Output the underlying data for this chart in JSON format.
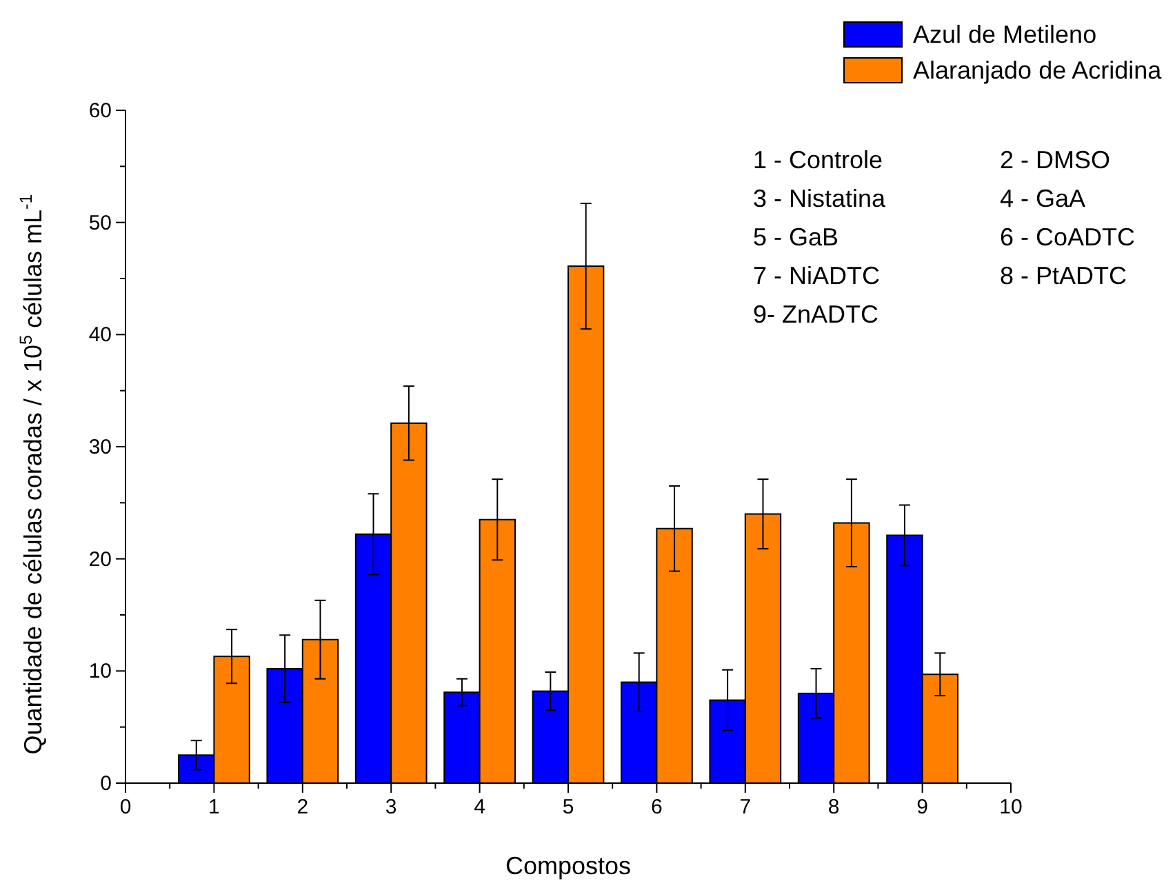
{
  "chart_data": {
    "type": "bar",
    "xlabel": "Compostos",
    "ylabel": "Quantidade de células coradas / x 10$^{5}$ células mL$^{-1}$",
    "x": [
      1,
      2,
      3,
      4,
      5,
      6,
      7,
      8,
      9
    ],
    "series": [
      {
        "name": "Azul de Metileno",
        "color": "#0000ff",
        "values": [
          2.5,
          10.2,
          22.2,
          8.1,
          8.2,
          9.0,
          7.4,
          8.0,
          22.1
        ],
        "errors": [
          1.3,
          3.0,
          3.6,
          1.2,
          1.7,
          2.6,
          2.7,
          2.2,
          2.7
        ]
      },
      {
        "name": "Alaranjado de Acridina",
        "color": "#ff8000",
        "values": [
          11.3,
          12.8,
          32.1,
          23.5,
          46.1,
          22.7,
          24.0,
          23.2,
          9.7
        ],
        "errors": [
          2.4,
          3.5,
          3.3,
          3.6,
          5.6,
          3.8,
          3.1,
          3.9,
          1.9
        ]
      }
    ],
    "xlim": [
      0,
      10
    ],
    "xticks": [
      0,
      {
        "value": 0.5,
        "label": null
      },
      1,
      {
        "value": 1.5,
        "label": null
      },
      2,
      {
        "value": 2.5,
        "label": null
      },
      3,
      {
        "value": 3.5,
        "label": null
      },
      4,
      {
        "value": 4.5,
        "label": null
      },
      5,
      {
        "value": 5.5,
        "label": null
      },
      6,
      {
        "value": 6.5,
        "label": null
      },
      7,
      {
        "value": 7.5,
        "label": null
      },
      8,
      {
        "value": 8.5,
        "label": null
      },
      9,
      {
        "value": 9.5,
        "label": null
      },
      10
    ],
    "ylim": [
      0,
      60
    ],
    "yticks": [
      0,
      {
        "value": 5,
        "label": null
      },
      10,
      {
        "value": 15,
        "label": null
      },
      20,
      {
        "value": 25,
        "label": null
      },
      30,
      {
        "value": 35,
        "label": null
      },
      40,
      {
        "value": 45,
        "label": null
      },
      50,
      {
        "value": 55,
        "label": null
      },
      60
    ],
    "legend": "top right",
    "grid": false,
    "annotations": [
      "1 - Controle",
      "2 - DMSO",
      "3 - Nistatina",
      "4 - GaA",
      "5 - GaB",
      "6 - CoADTC",
      "7 - NiADTC",
      "8 - PtADTC",
      "9- ZnADTC"
    ]
  }
}
